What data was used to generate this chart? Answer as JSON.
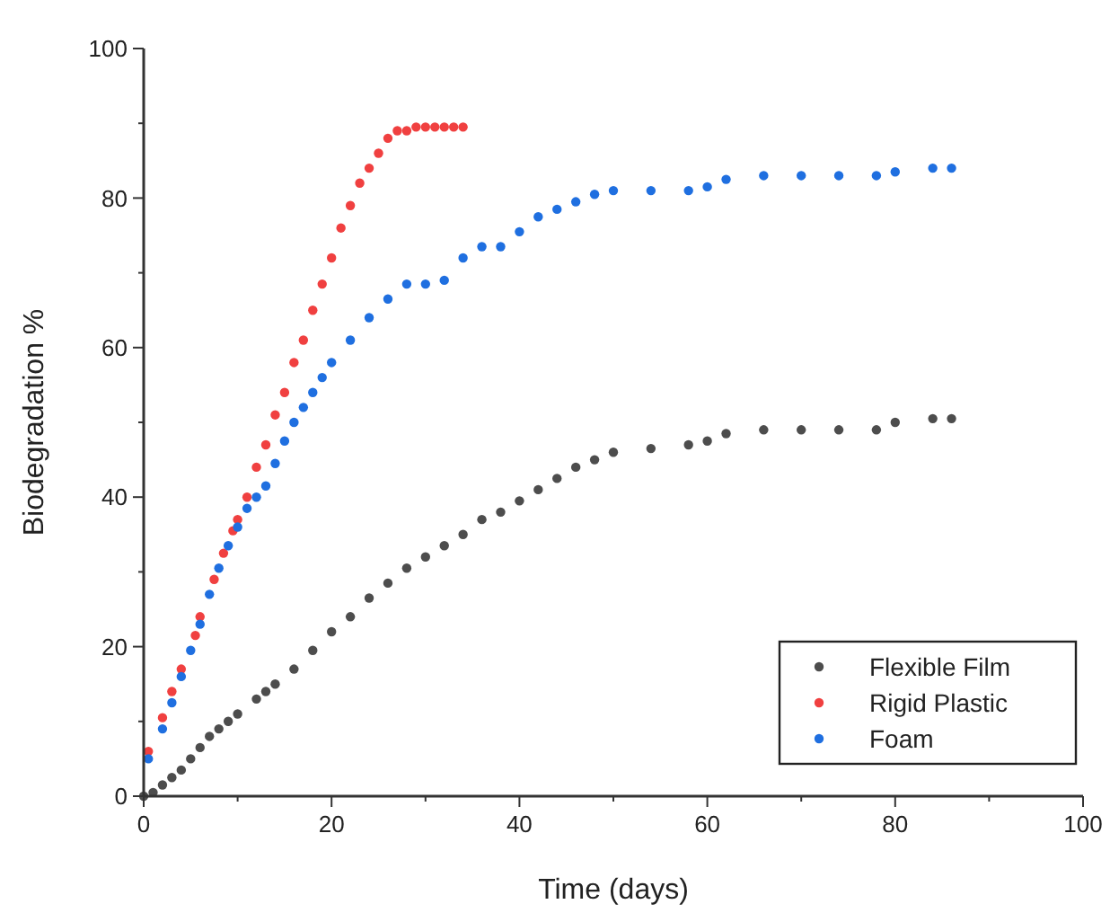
{
  "chart_data": {
    "type": "scatter",
    "xlabel": "Time (days)",
    "ylabel": "Biodegradation %",
    "xlim": [
      0,
      100
    ],
    "ylim": [
      0,
      100
    ],
    "xticks": [
      0,
      {
        "value": 10,
        "label": null
      },
      20,
      {
        "value": 30,
        "label": null
      },
      40,
      {
        "value": 50,
        "label": null
      },
      60,
      {
        "value": 70,
        "label": null
      },
      80,
      {
        "value": 90,
        "label": null
      },
      100
    ],
    "yticks": [
      0,
      {
        "value": 10,
        "label": null
      },
      20,
      {
        "value": 30,
        "label": null
      },
      40,
      {
        "value": 50,
        "label": null
      },
      60,
      {
        "value": 70,
        "label": null
      },
      80,
      {
        "value": 90,
        "label": null
      },
      100
    ],
    "grid": false,
    "legend": "bottom right",
    "marker": "circle",
    "series": [
      {
        "name": "Flexible Film",
        "color": "#4d4d4d",
        "x": [
          0,
          1,
          2,
          3,
          4,
          5,
          6,
          7,
          8,
          9,
          10,
          12,
          13,
          14,
          16,
          18,
          20,
          22,
          24,
          26,
          28,
          30,
          32,
          34,
          36,
          38,
          40,
          42,
          44,
          46,
          48,
          50,
          54,
          58,
          60,
          62,
          66,
          70,
          74,
          78,
          80,
          84,
          86
        ],
        "values": [
          0,
          0.5,
          1.5,
          2.5,
          3.5,
          5,
          6.5,
          8,
          9,
          10,
          11,
          13,
          14,
          15,
          17,
          19.5,
          22,
          24,
          26.5,
          28.5,
          30.5,
          32,
          33.5,
          35,
          37,
          38,
          39.5,
          41,
          42.5,
          44,
          45,
          46,
          46.5,
          47,
          47.5,
          48.5,
          49,
          49,
          49,
          49,
          50,
          50.5,
          50.5
        ]
      },
      {
        "name": "Rigid Plastic",
        "color": "#f04040",
        "x": [
          0.5,
          2,
          3,
          4,
          5.5,
          6,
          7.5,
          8.5,
          9.5,
          10,
          11,
          12,
          13,
          14,
          15,
          16,
          17,
          18,
          19,
          20,
          21,
          22,
          23,
          24,
          25,
          26,
          27,
          28,
          29,
          30,
          31,
          32,
          33,
          34
        ],
        "values": [
          6,
          10.5,
          14,
          17,
          21.5,
          24,
          29,
          32.5,
          35.5,
          37,
          40,
          44,
          47,
          51,
          54,
          58,
          61,
          65,
          68.5,
          72,
          76,
          79,
          82,
          84,
          86,
          88,
          89,
          89,
          89.5,
          89.5,
          89.5,
          89.5,
          89.5,
          89.5
        ]
      },
      {
        "name": "Foam",
        "color": "#1f6fe0",
        "x": [
          0.5,
          2,
          3,
          4,
          5,
          6,
          7,
          8,
          9,
          10,
          11,
          12,
          13,
          14,
          15,
          16,
          17,
          18,
          19,
          20,
          22,
          24,
          26,
          28,
          30,
          32,
          34,
          36,
          38,
          40,
          42,
          44,
          46,
          48,
          50,
          54,
          58,
          60,
          62,
          66,
          70,
          74,
          78,
          80,
          84,
          86
        ],
        "values": [
          5,
          9,
          12.5,
          16,
          19.5,
          23,
          27,
          30.5,
          33.5,
          36,
          38.5,
          40,
          41.5,
          44.5,
          47.5,
          50,
          52,
          54,
          56,
          58,
          61,
          64,
          66.5,
          68.5,
          68.5,
          69,
          72,
          73.5,
          73.5,
          75.5,
          77.5,
          78.5,
          79.5,
          80.5,
          81,
          81,
          81,
          81.5,
          82.5,
          83,
          83,
          83,
          83,
          83.5,
          84,
          84
        ]
      }
    ]
  }
}
